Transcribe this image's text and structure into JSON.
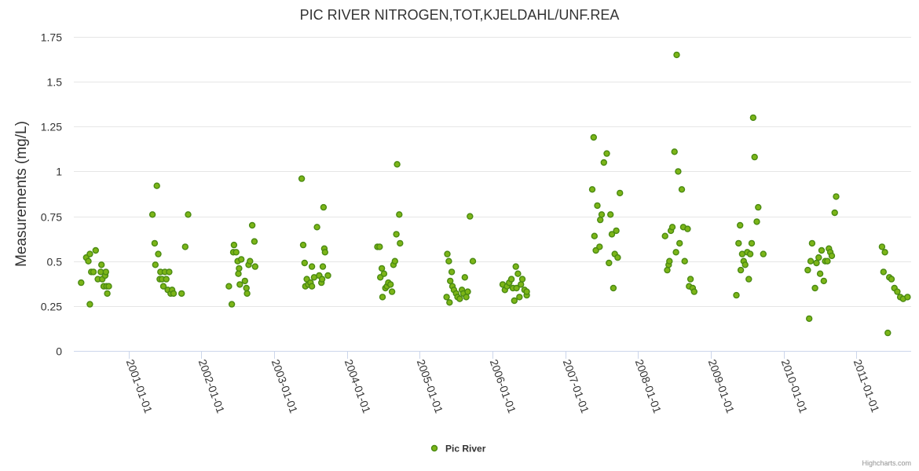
{
  "chart_data": {
    "type": "scatter",
    "title": "PIC RIVER NITROGEN,TOT,KJELDAHL/UNF.REA",
    "ylabel": "Measurements (mg/L)",
    "xlabel": "",
    "ylim": [
      0,
      1.75
    ],
    "y_ticks": [
      {
        "value": 0,
        "label": "0"
      },
      {
        "value": 0.25,
        "label": "0.25"
      },
      {
        "value": 0.5,
        "label": "0.5"
      },
      {
        "value": 0.75,
        "label": "0.75"
      },
      {
        "value": 1,
        "label": "1"
      },
      {
        "value": 1.25,
        "label": "1.25"
      },
      {
        "value": 1.5,
        "label": "1.5"
      },
      {
        "value": 1.75,
        "label": "1.75"
      }
    ],
    "xlim": [
      2000.25,
      2011.75
    ],
    "x_ticks": [
      {
        "value": 2001,
        "label": "2001-01-01"
      },
      {
        "value": 2002,
        "label": "2002-01-01"
      },
      {
        "value": 2003,
        "label": "2003-01-01"
      },
      {
        "value": 2004,
        "label": "2004-01-01"
      },
      {
        "value": 2005,
        "label": "2005-01-01"
      },
      {
        "value": 2006,
        "label": "2006-01-01"
      },
      {
        "value": 2007,
        "label": "2007-01-01"
      },
      {
        "value": 2008,
        "label": "2008-01-01"
      },
      {
        "value": 2009,
        "label": "2009-01-01"
      },
      {
        "value": 2010,
        "label": "2010-01-01"
      },
      {
        "value": 2011,
        "label": "2011-01-01"
      }
    ],
    "grid": true,
    "legend_position": "bottom-center",
    "series": [
      {
        "name": "Pic River",
        "color": "#7cb518",
        "points": [
          [
            2000.35,
            0.38
          ],
          [
            2000.42,
            0.52
          ],
          [
            2000.45,
            0.5
          ],
          [
            2000.47,
            0.26
          ],
          [
            2000.47,
            0.54
          ],
          [
            2000.49,
            0.44
          ],
          [
            2000.52,
            0.44
          ],
          [
            2000.55,
            0.56
          ],
          [
            2000.58,
            0.4
          ],
          [
            2000.62,
            0.44
          ],
          [
            2000.63,
            0.48
          ],
          [
            2000.64,
            0.4
          ],
          [
            2000.66,
            0.36
          ],
          [
            2000.68,
            0.42
          ],
          [
            2000.69,
            0.44
          ],
          [
            2000.7,
            0.36
          ],
          [
            2000.71,
            0.32
          ],
          [
            2000.73,
            0.36
          ],
          [
            2001.33,
            0.76
          ],
          [
            2001.36,
            0.6
          ],
          [
            2001.37,
            0.48
          ],
          [
            2001.39,
            0.92
          ],
          [
            2001.41,
            0.54
          ],
          [
            2001.43,
            0.4
          ],
          [
            2001.44,
            0.44
          ],
          [
            2001.46,
            0.4
          ],
          [
            2001.48,
            0.36
          ],
          [
            2001.5,
            0.44
          ],
          [
            2001.52,
            0.4
          ],
          [
            2001.54,
            0.34
          ],
          [
            2001.56,
            0.44
          ],
          [
            2001.58,
            0.32
          ],
          [
            2001.6,
            0.34
          ],
          [
            2001.62,
            0.32
          ],
          [
            2001.73,
            0.32
          ],
          [
            2001.78,
            0.58
          ],
          [
            2001.82,
            0.76
          ],
          [
            2002.38,
            0.36
          ],
          [
            2002.42,
            0.26
          ],
          [
            2002.44,
            0.55
          ],
          [
            2002.45,
            0.59
          ],
          [
            2002.48,
            0.55
          ],
          [
            2002.5,
            0.5
          ],
          [
            2002.51,
            0.43
          ],
          [
            2002.52,
            0.46
          ],
          [
            2002.55,
            0.51
          ],
          [
            2002.53,
            0.37
          ],
          [
            2002.6,
            0.39
          ],
          [
            2002.62,
            0.35
          ],
          [
            2002.63,
            0.32
          ],
          [
            2002.65,
            0.48
          ],
          [
            2002.67,
            0.5
          ],
          [
            2002.7,
            0.7
          ],
          [
            2002.73,
            0.61
          ],
          [
            2002.74,
            0.47
          ],
          [
            2003.38,
            0.96
          ],
          [
            2003.4,
            0.59
          ],
          [
            2003.42,
            0.49
          ],
          [
            2003.43,
            0.36
          ],
          [
            2003.45,
            0.4
          ],
          [
            2003.47,
            0.37
          ],
          [
            2003.5,
            0.38
          ],
          [
            2003.52,
            0.36
          ],
          [
            2003.52,
            0.47
          ],
          [
            2003.55,
            0.41
          ],
          [
            2003.59,
            0.69
          ],
          [
            2003.62,
            0.42
          ],
          [
            2003.65,
            0.38
          ],
          [
            2003.66,
            0.4
          ],
          [
            2003.67,
            0.47
          ],
          [
            2003.69,
            0.57
          ],
          [
            2003.7,
            0.55
          ],
          [
            2003.68,
            0.8
          ],
          [
            2003.74,
            0.42
          ],
          [
            2004.42,
            0.58
          ],
          [
            2004.45,
            0.58
          ],
          [
            2004.46,
            0.41
          ],
          [
            2004.48,
            0.46
          ],
          [
            2004.49,
            0.3
          ],
          [
            2004.51,
            0.43
          ],
          [
            2004.53,
            0.35
          ],
          [
            2004.55,
            0.36
          ],
          [
            2004.57,
            0.38
          ],
          [
            2004.6,
            0.37
          ],
          [
            2004.62,
            0.33
          ],
          [
            2004.64,
            0.48
          ],
          [
            2004.66,
            0.5
          ],
          [
            2004.68,
            0.65
          ],
          [
            2004.69,
            1.04
          ],
          [
            2004.72,
            0.76
          ],
          [
            2004.73,
            0.6
          ],
          [
            2005.38,
            0.54
          ],
          [
            2005.37,
            0.3
          ],
          [
            2005.4,
            0.5
          ],
          [
            2005.41,
            0.27
          ],
          [
            2005.42,
            0.39
          ],
          [
            2005.44,
            0.44
          ],
          [
            2005.45,
            0.36
          ],
          [
            2005.47,
            0.34
          ],
          [
            2005.5,
            0.32
          ],
          [
            2005.52,
            0.3
          ],
          [
            2005.55,
            0.29
          ],
          [
            2005.58,
            0.34
          ],
          [
            2005.6,
            0.32
          ],
          [
            2005.62,
            0.41
          ],
          [
            2005.64,
            0.3
          ],
          [
            2005.66,
            0.33
          ],
          [
            2005.69,
            0.75
          ],
          [
            2005.73,
            0.5
          ],
          [
            2006.14,
            0.37
          ],
          [
            2006.17,
            0.34
          ],
          [
            2006.2,
            0.36
          ],
          [
            2006.23,
            0.38
          ],
          [
            2006.26,
            0.4
          ],
          [
            2006.28,
            0.35
          ],
          [
            2006.3,
            0.28
          ],
          [
            2006.32,
            0.47
          ],
          [
            2006.33,
            0.35
          ],
          [
            2006.35,
            0.43
          ],
          [
            2006.37,
            0.3
          ],
          [
            2006.39,
            0.37
          ],
          [
            2006.41,
            0.4
          ],
          [
            2006.44,
            0.34
          ],
          [
            2006.47,
            0.31
          ],
          [
            2006.47,
            0.33
          ],
          [
            2007.37,
            0.9
          ],
          [
            2007.39,
            1.19
          ],
          [
            2007.4,
            0.64
          ],
          [
            2007.42,
            0.56
          ],
          [
            2007.44,
            0.81
          ],
          [
            2007.47,
            0.58
          ],
          [
            2007.48,
            0.73
          ],
          [
            2007.5,
            0.76
          ],
          [
            2007.53,
            1.05
          ],
          [
            2007.57,
            1.1
          ],
          [
            2007.6,
            0.49
          ],
          [
            2007.62,
            0.76
          ],
          [
            2007.64,
            0.65
          ],
          [
            2007.66,
            0.35
          ],
          [
            2007.68,
            0.54
          ],
          [
            2007.7,
            0.67
          ],
          [
            2007.72,
            0.52
          ],
          [
            2007.75,
            0.88
          ],
          [
            2008.37,
            0.64
          ],
          [
            2008.4,
            0.45
          ],
          [
            2008.42,
            0.48
          ],
          [
            2008.43,
            0.5
          ],
          [
            2008.45,
            0.67
          ],
          [
            2008.47,
            0.69
          ],
          [
            2008.5,
            1.11
          ],
          [
            2008.52,
            0.55
          ],
          [
            2008.53,
            1.65
          ],
          [
            2008.55,
            1.0
          ],
          [
            2008.57,
            0.6
          ],
          [
            2008.6,
            0.9
          ],
          [
            2008.62,
            0.69
          ],
          [
            2008.64,
            0.5
          ],
          [
            2008.68,
            0.68
          ],
          [
            2008.7,
            0.36
          ],
          [
            2008.72,
            0.4
          ],
          [
            2008.75,
            0.35
          ],
          [
            2008.77,
            0.33
          ],
          [
            2009.35,
            0.31
          ],
          [
            2009.38,
            0.6
          ],
          [
            2009.4,
            0.7
          ],
          [
            2009.41,
            0.45
          ],
          [
            2009.43,
            0.54
          ],
          [
            2009.45,
            0.5
          ],
          [
            2009.47,
            0.48
          ],
          [
            2009.5,
            0.55
          ],
          [
            2009.52,
            0.4
          ],
          [
            2009.54,
            0.54
          ],
          [
            2009.56,
            0.6
          ],
          [
            2009.58,
            1.3
          ],
          [
            2009.6,
            1.08
          ],
          [
            2009.63,
            0.72
          ],
          [
            2009.65,
            0.8
          ],
          [
            2009.72,
            0.54
          ],
          [
            2010.33,
            0.45
          ],
          [
            2010.35,
            0.18
          ],
          [
            2010.37,
            0.5
          ],
          [
            2010.39,
            0.6
          ],
          [
            2010.43,
            0.35
          ],
          [
            2010.45,
            0.49
          ],
          [
            2010.48,
            0.52
          ],
          [
            2010.5,
            0.43
          ],
          [
            2010.52,
            0.56
          ],
          [
            2010.55,
            0.39
          ],
          [
            2010.57,
            0.5
          ],
          [
            2010.6,
            0.5
          ],
          [
            2010.62,
            0.57
          ],
          [
            2010.64,
            0.55
          ],
          [
            2010.66,
            0.53
          ],
          [
            2010.7,
            0.77
          ],
          [
            2010.72,
            0.86
          ],
          [
            2011.35,
            0.58
          ],
          [
            2011.37,
            0.44
          ],
          [
            2011.39,
            0.55
          ],
          [
            2011.43,
            0.1
          ],
          [
            2011.45,
            0.41
          ],
          [
            2011.48,
            0.4
          ],
          [
            2011.52,
            0.35
          ],
          [
            2011.56,
            0.33
          ],
          [
            2011.6,
            0.3
          ],
          [
            2011.64,
            0.29
          ],
          [
            2011.7,
            0.3
          ]
        ]
      }
    ]
  },
  "credits": "Highcharts.com"
}
